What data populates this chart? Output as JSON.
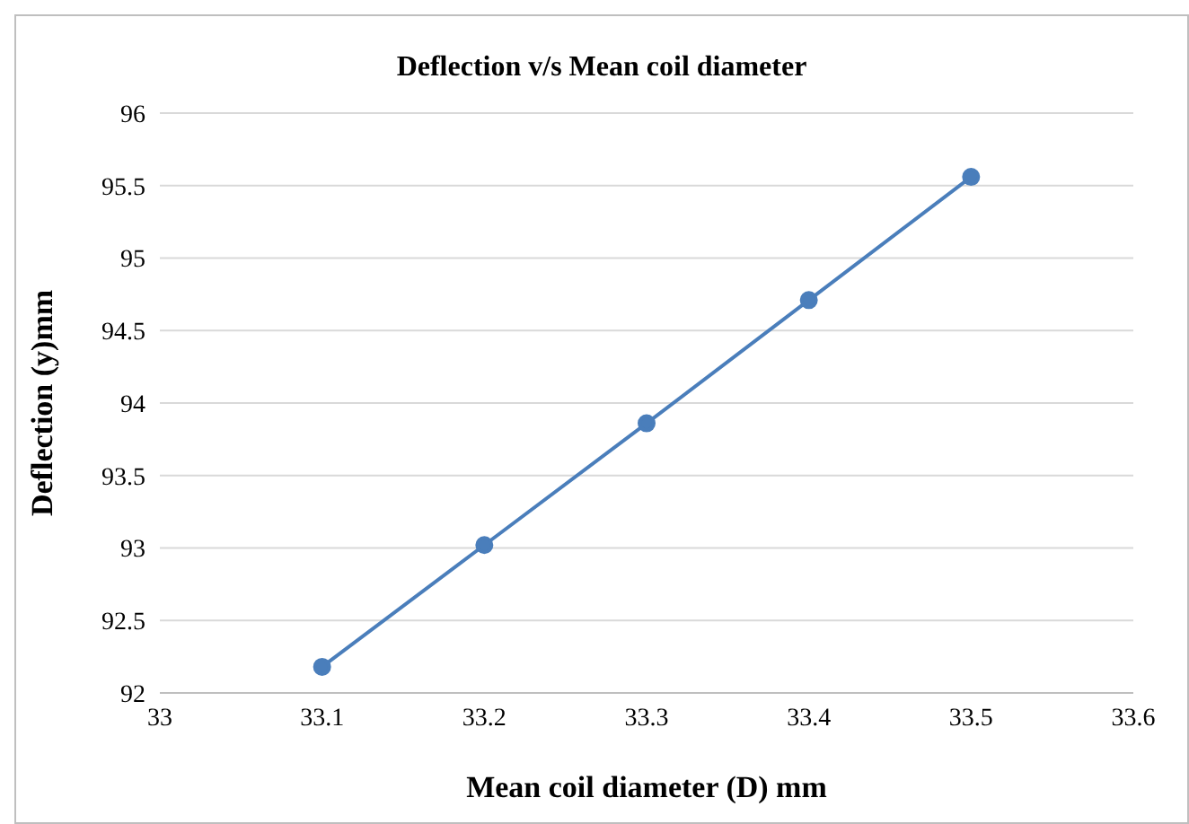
{
  "chart_data": {
    "type": "line",
    "title": "Deflection v/s Mean coil diameter",
    "xlabel": "Mean coil diameter (D) mm",
    "ylabel": "Deflection (y)mm",
    "x": [
      33.1,
      33.2,
      33.3,
      33.4,
      33.5
    ],
    "series": [
      {
        "color": "#4a7ebb",
        "values": [
          92.18,
          93.02,
          93.86,
          94.71,
          95.56
        ]
      }
    ],
    "xlim": [
      33,
      33.6
    ],
    "xticks": [
      33,
      33.1,
      33.2,
      33.3,
      33.4,
      33.5,
      33.6
    ],
    "ylim": [
      92,
      96
    ],
    "yticks": [
      92,
      92.5,
      93,
      93.5,
      94,
      94.5,
      95,
      95.5,
      96
    ],
    "grid": "y",
    "marker": "circle",
    "line_style": "solid",
    "legend": false
  }
}
